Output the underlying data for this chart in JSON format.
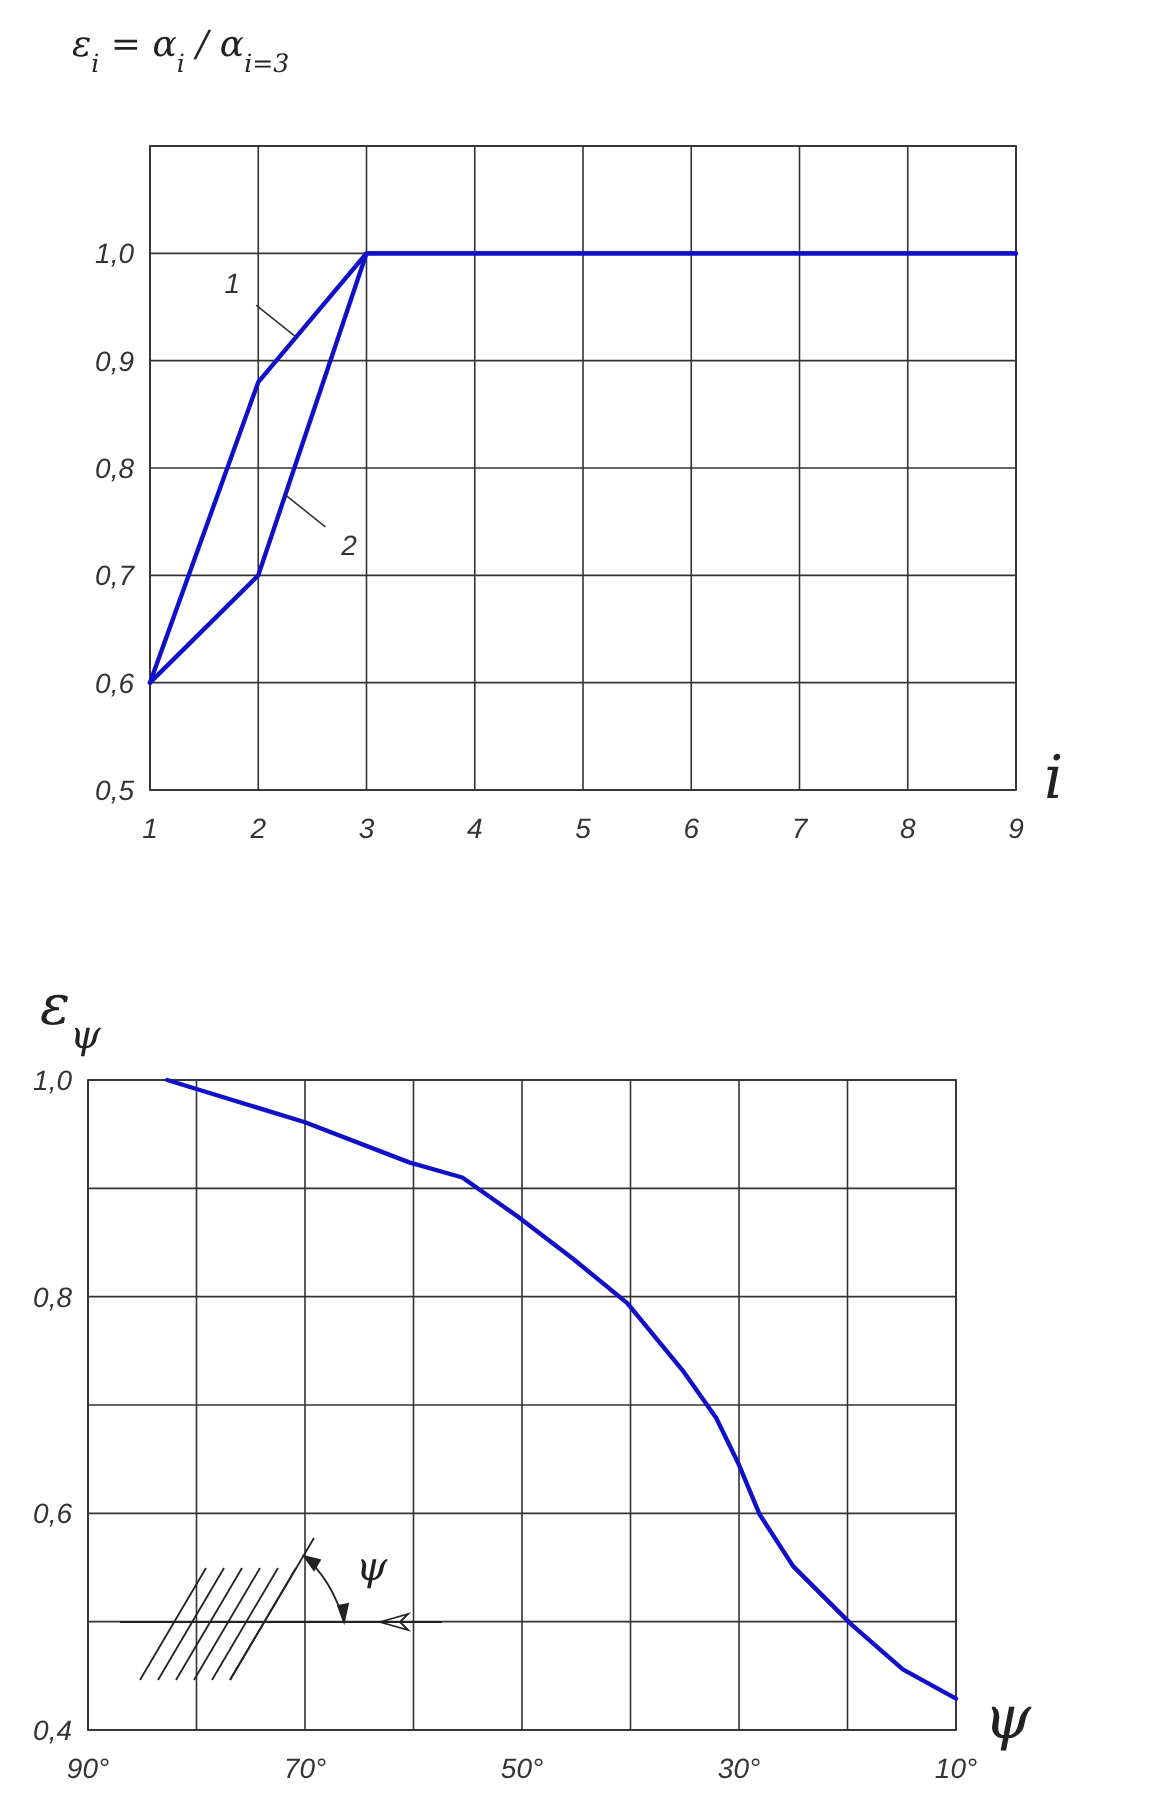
{
  "chart_data": [
    {
      "type": "line",
      "ylabel": "ε$_{i}$ = α$_{i}$ / α$_{i=3}$",
      "xlabel": "i",
      "x": [
        1,
        2,
        3,
        4,
        5,
        6,
        7,
        8,
        9
      ],
      "series": [
        {
          "name": "1",
          "color": "#1010c8",
          "values": [
            0.6,
            0.88,
            1.0,
            1.0,
            1.0,
            1.0,
            1.0,
            1.0,
            1.0
          ]
        },
        {
          "name": "2",
          "color": "#1010c8",
          "values": [
            0.6,
            0.7,
            1.0,
            1.0,
            1.0,
            1.0,
            1.0,
            1.0,
            1.0
          ]
        }
      ],
      "xlim": [
        1,
        9
      ],
      "xticks": [
        1,
        2,
        3,
        4,
        5,
        6,
        7,
        8,
        9
      ],
      "ylim": [
        0.5,
        1.1
      ],
      "yticks": [
        {
          "value": 0.5,
          "label": "0,5"
        },
        {
          "value": 0.6,
          "label": "0,6"
        },
        {
          "value": 0.7,
          "label": "0,7"
        },
        {
          "value": 0.8,
          "label": "0,8"
        },
        {
          "value": 0.9,
          "label": "0,9"
        },
        {
          "value": 1.0,
          "label": "1,0"
        },
        {
          "value": 1.1,
          "label": null
        }
      ],
      "grid": true,
      "line_style": "solid",
      "marker": "none"
    },
    {
      "type": "line",
      "ylabel": "ε$_{ψ}$",
      "xlabel": "ψ",
      "x": [
        82.7,
        70,
        60.4,
        55.5,
        50.4,
        45.3,
        40.3,
        35.2,
        32.1,
        30.1,
        28.1,
        25,
        19.6,
        14.9,
        10
      ],
      "series": [
        {
          "color": "#1010c8",
          "values": [
            1.0,
            0.961,
            0.924,
            0.91,
            0.874,
            0.835,
            0.794,
            0.732,
            0.688,
            0.647,
            0.599,
            0.551,
            0.497,
            0.456,
            0.429
          ]
        }
      ],
      "xlim": [
        90,
        10
      ],
      "xticks": [
        {
          "value": 90,
          "label": "90°"
        },
        {
          "value": 80,
          "label": null
        },
        {
          "value": 70,
          "label": "70°"
        },
        {
          "value": 60,
          "label": null
        },
        {
          "value": 50,
          "label": "50°"
        },
        {
          "value": 40,
          "label": null
        },
        {
          "value": 30,
          "label": "30°"
        },
        {
          "value": 20,
          "label": null
        },
        {
          "value": 10,
          "label": "10°"
        }
      ],
      "ylim": [
        0.4,
        1.0
      ],
      "yticks": [
        {
          "value": 0.4,
          "label": "0,4"
        },
        {
          "value": 0.5,
          "label": null
        },
        {
          "value": 0.6,
          "label": "0,6"
        },
        {
          "value": 0.7,
          "label": null
        },
        {
          "value": 0.8,
          "label": "0,8"
        },
        {
          "value": 0.9,
          "label": null
        },
        {
          "value": 1.0,
          "label": "1,0"
        }
      ],
      "annotations": [
        "ψ"
      ],
      "grid": true,
      "line_style": "solid",
      "marker": "none"
    }
  ]
}
